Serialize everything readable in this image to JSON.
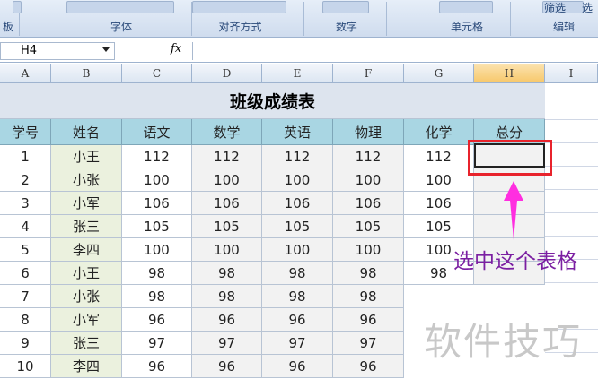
{
  "ribbon": {
    "groups": [
      "板",
      "字体",
      "对齐方式",
      "数字",
      "单元格",
      "编辑"
    ],
    "top_right": [
      "筛选",
      "选"
    ]
  },
  "formula_bar": {
    "name_box": "H4",
    "fx": "fx"
  },
  "columns": [
    "A",
    "B",
    "C",
    "D",
    "E",
    "F",
    "G",
    "H",
    "I"
  ],
  "sheet_title": "班级成绩表",
  "table": {
    "header": [
      "学号",
      "姓名",
      "语文",
      "数学",
      "英语",
      "物理",
      "化学",
      "总分"
    ],
    "rows": [
      [
        1,
        "小王",
        112,
        112,
        112,
        112,
        112
      ],
      [
        2,
        "小张",
        100,
        100,
        100,
        100,
        100
      ],
      [
        3,
        "小军",
        106,
        106,
        106,
        106,
        106
      ],
      [
        4,
        "张三",
        105,
        105,
        105,
        105,
        105
      ],
      [
        5,
        "李四",
        100,
        100,
        100,
        100,
        100
      ],
      [
        6,
        "小王",
        98,
        98,
        98,
        98,
        98
      ],
      [
        7,
        "小张",
        98,
        98,
        98,
        98
      ],
      [
        8,
        "小军",
        96,
        96,
        96,
        96
      ],
      [
        9,
        "张三",
        97,
        97,
        97,
        97
      ],
      [
        10,
        "李四",
        96,
        96,
        96,
        96
      ]
    ]
  },
  "annotation": "选中这个表格",
  "watermark": "软件技巧"
}
